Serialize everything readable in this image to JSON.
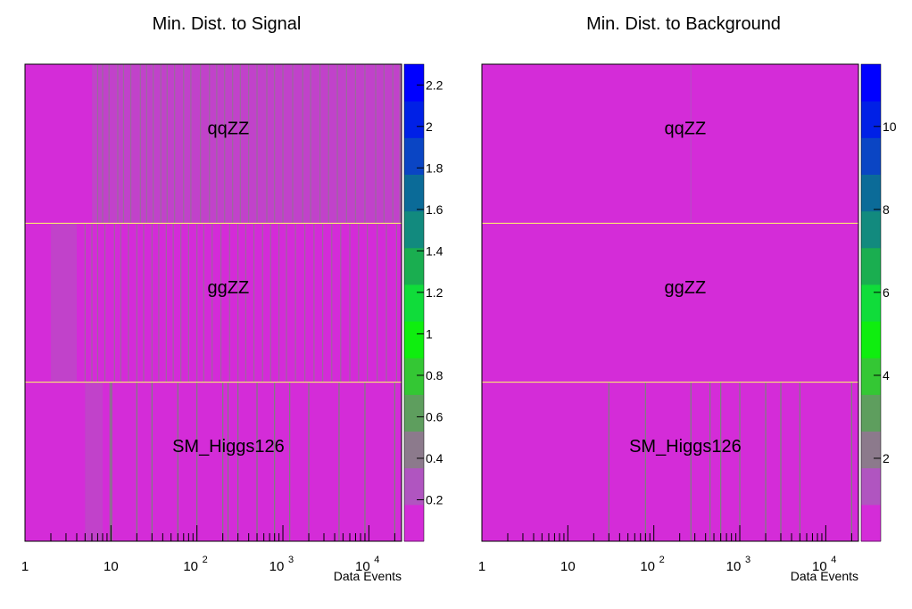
{
  "chart_data": [
    {
      "type": "heatmap",
      "title": "Min. Dist. to Signal",
      "xlabel": "Data Events",
      "xscale": "log",
      "xlim": [
        1,
        24000
      ],
      "x_ticks": [
        {
          "value": 1,
          "base": "1",
          "exp": ""
        },
        {
          "value": 10,
          "base": "10",
          "exp": ""
        },
        {
          "value": 100,
          "base": "10",
          "exp": "2"
        },
        {
          "value": 1000,
          "base": "10",
          "exp": "3"
        },
        {
          "value": 10000,
          "base": "10",
          "exp": "4"
        }
      ],
      "rows": [
        "SM_Higgs126",
        "ggZZ",
        "qqZZ"
      ],
      "colorbar": {
        "min": 0.0,
        "max": 2.3,
        "ticks": [
          "0.2",
          "0.4",
          "0.6",
          "0.8",
          "1",
          "1.2",
          "1.4",
          "1.6",
          "1.8",
          "2",
          "2.2"
        ]
      },
      "background_value": 0.0,
      "bands": [
        {
          "row": "qqZZ",
          "x0": 6,
          "x1": 24000,
          "value": 0.25
        },
        {
          "row": "ggZZ",
          "x0": 2,
          "x1": 24000,
          "value": 0.15
        },
        {
          "row": "ggZZ",
          "x0": 2,
          "x1": 4,
          "value": 0.3
        },
        {
          "row": "SM_Higgs126",
          "x0": 5,
          "x1": 8,
          "value": 0.35
        },
        {
          "row": "SM_Higgs126",
          "x0": 9.6,
          "x1": 10.4,
          "value": 0.7
        }
      ],
      "stripes": [
        {
          "row": "qqZZ",
          "x": [
            7,
            8,
            9.5,
            12,
            14,
            17,
            22,
            26,
            31,
            38,
            45,
            55,
            70,
            85,
            110,
            140,
            170,
            210,
            260,
            320,
            400,
            500,
            650,
            800,
            1000,
            1300,
            1700,
            2100,
            2700,
            3400,
            4300,
            5500,
            7000,
            9000,
            12000,
            15000,
            19000,
            23000
          ],
          "value": 0.45
        },
        {
          "row": "ggZZ",
          "x": [
            5,
            6,
            7,
            8.5,
            11,
            13,
            16,
            20,
            24,
            30,
            36,
            44,
            53,
            65,
            80,
            100,
            120,
            150,
            190,
            240,
            300,
            370,
            460,
            580,
            720,
            900,
            1100,
            1400,
            1800,
            2300,
            2900,
            3700,
            4700,
            6000,
            7600,
            9600,
            12500,
            16000,
            21000
          ],
          "value": 0.4
        },
        {
          "row": "SM_Higgs126",
          "x": [
            20,
            30,
            60,
            100,
            200,
            230,
            300,
            500,
            800,
            1200,
            2000,
            4500,
            9000,
            20000
          ],
          "value": 0.6
        }
      ]
    },
    {
      "type": "heatmap",
      "title": "Min. Dist. to Background",
      "xlabel": "Data Events",
      "xscale": "log",
      "xlim": [
        1,
        24000
      ],
      "x_ticks": [
        {
          "value": 1,
          "base": "1",
          "exp": ""
        },
        {
          "value": 10,
          "base": "10",
          "exp": ""
        },
        {
          "value": 100,
          "base": "10",
          "exp": "2"
        },
        {
          "value": 1000,
          "base": "10",
          "exp": "3"
        },
        {
          "value": 10000,
          "base": "10",
          "exp": "4"
        }
      ],
      "rows": [
        "SM_Higgs126",
        "ggZZ",
        "qqZZ"
      ],
      "colorbar": {
        "min": 0.0,
        "max": 11.5,
        "ticks": [
          "2",
          "4",
          "6",
          "8",
          "10"
        ]
      },
      "background_value": 0.0,
      "bands": [],
      "stripes": [
        {
          "row": "SM_Higgs126",
          "x": [
            30,
            80,
            270,
            450,
            600,
            1000,
            2000,
            3000,
            5000,
            20000
          ],
          "value": 3.0
        },
        {
          "row": "qqZZ",
          "x": [
            270
          ],
          "value": 1.5
        }
      ]
    }
  ]
}
